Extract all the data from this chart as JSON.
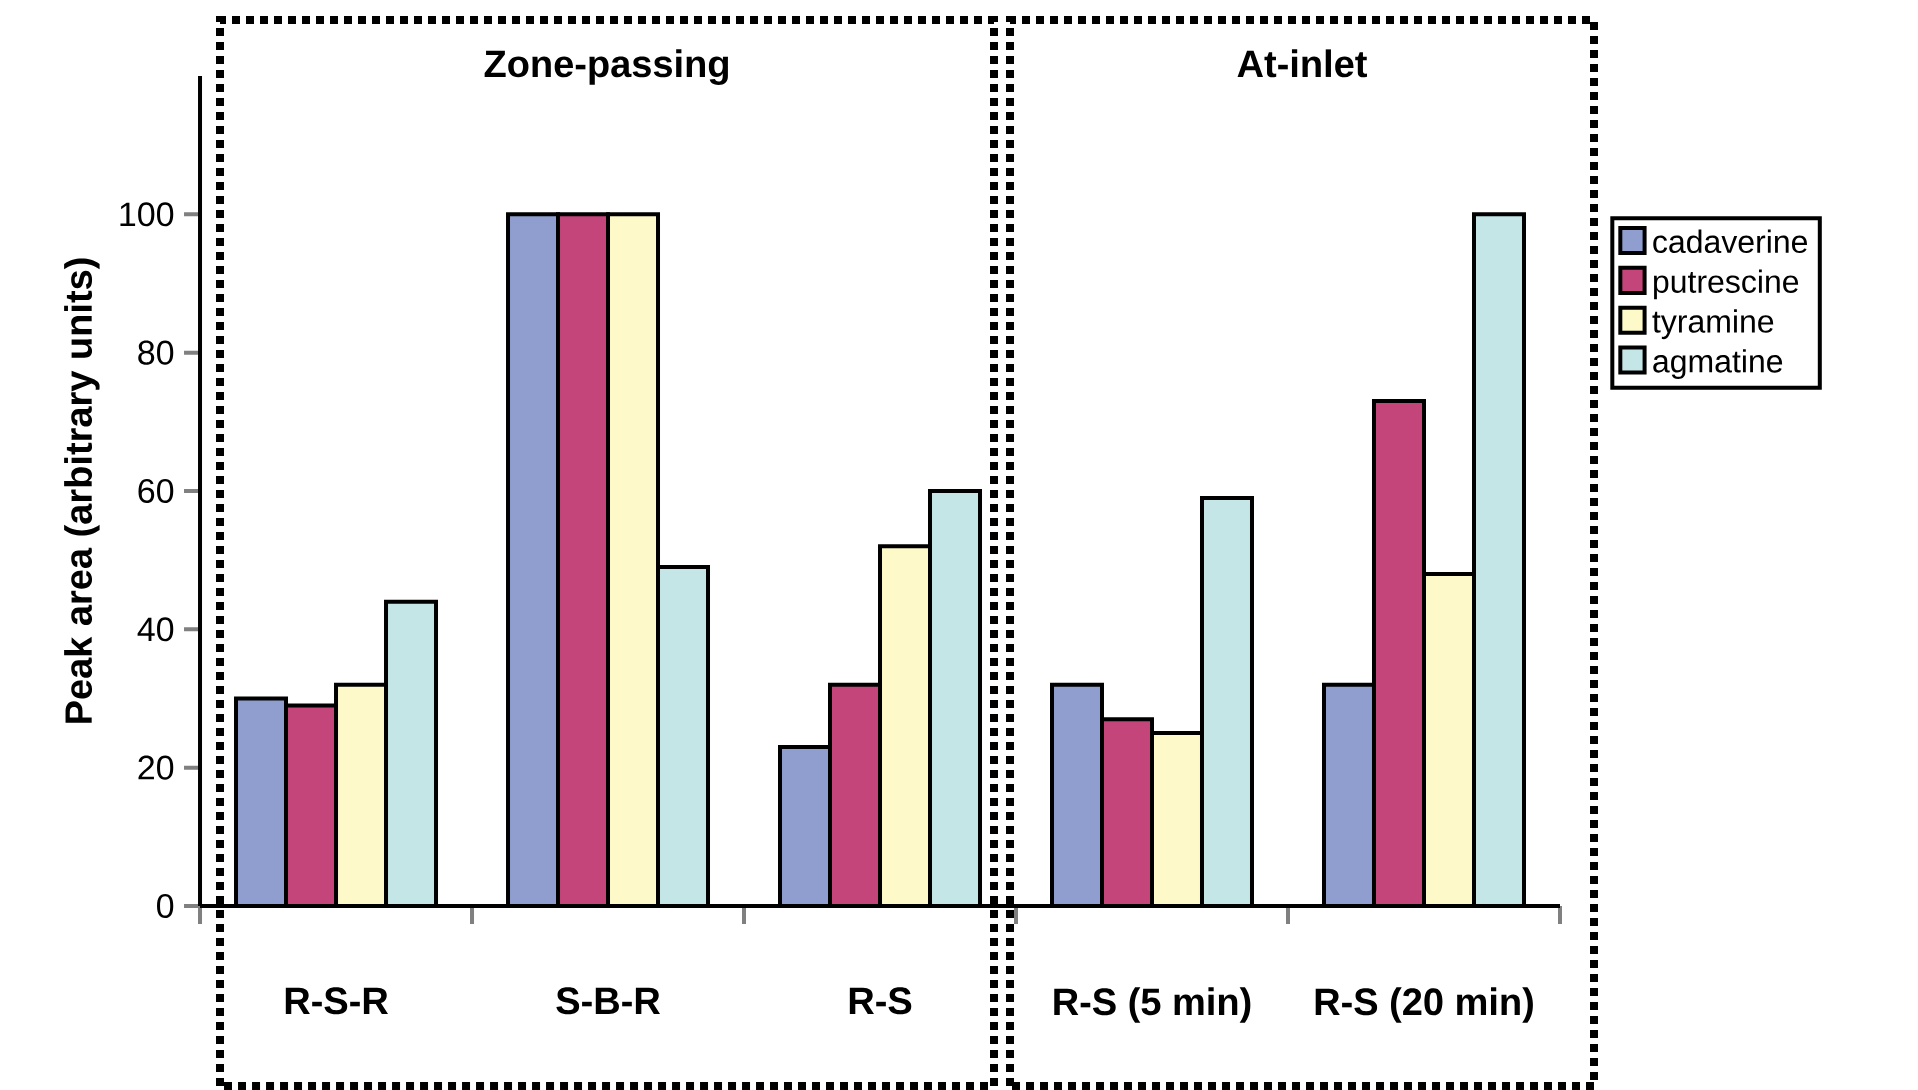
{
  "chart_data": {
    "type": "bar",
    "ylabel": "Peak area (arbitrary units)",
    "categories": [
      "R-S-R",
      "S-B-R",
      "R-S",
      "R-S (5 min)",
      "R-S (20 min)"
    ],
    "series": [
      {
        "name": "cadaverine",
        "color": "#8f9ecf",
        "values": [
          30,
          100,
          23,
          32,
          32
        ]
      },
      {
        "name": "putrescine",
        "color": "#c4457a",
        "values": [
          29,
          100,
          32,
          27,
          73
        ]
      },
      {
        "name": "tyramine",
        "color": "#fdf9c9",
        "values": [
          32,
          100,
          52,
          25,
          48
        ]
      },
      {
        "name": "agmatine",
        "color": "#c5e6e6",
        "values": [
          44,
          49,
          60,
          59,
          100
        ]
      }
    ],
    "ylim": [
      0,
      120
    ],
    "yticks": [
      0,
      20,
      40,
      60,
      80,
      100
    ],
    "annotations": [
      "Zone-passing",
      "At-inlet"
    ],
    "legend": "right",
    "grid": false
  }
}
